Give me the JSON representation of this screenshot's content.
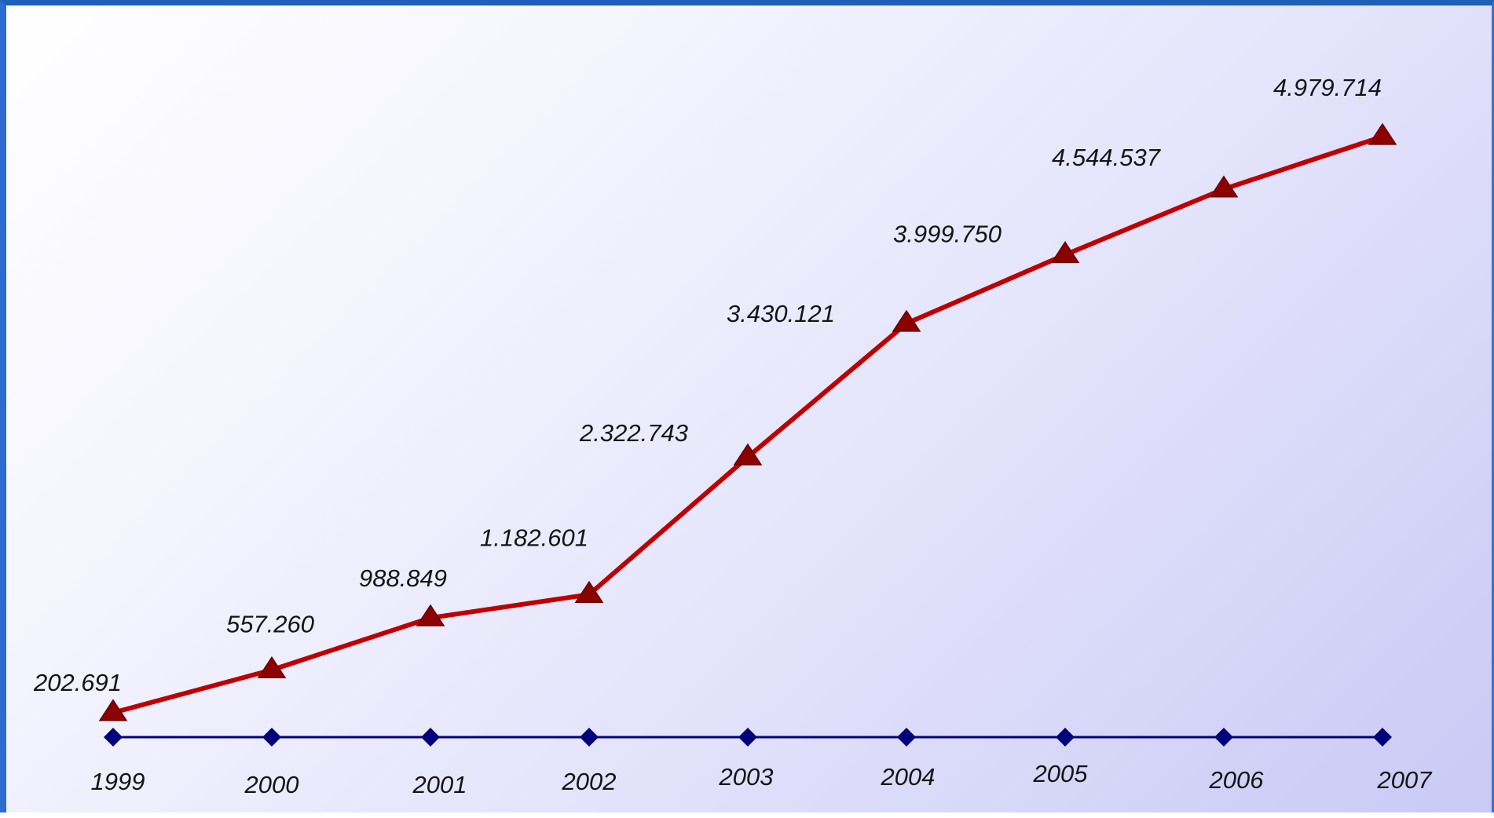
{
  "chart_data": {
    "type": "line",
    "categories": [
      "1999",
      "2000",
      "2001",
      "2002",
      "2003",
      "2004",
      "2005",
      "2006",
      "2007"
    ],
    "series": [
      {
        "name": "",
        "values": [
          202691,
          557260,
          988849,
          1182601,
          2322743,
          3430121,
          3999750,
          4544537,
          4979714
        ],
        "value_labels": [
          "202.691",
          "557.260",
          "988.849",
          "1.182.601",
          "2.322.743",
          "3.430.121",
          "3.999.750",
          "4.544.537",
          "4.979.714"
        ],
        "color": "#c00000",
        "marker": "triangle",
        "marker_color": "#8b0000"
      },
      {
        "name": "",
        "values": [
          0,
          0,
          0,
          0,
          0,
          0,
          0,
          0,
          0
        ],
        "color": "#00007a",
        "marker": "diamond"
      }
    ],
    "title": "",
    "xlabel": "",
    "ylabel": "",
    "ylim": [
      0,
      5200000
    ],
    "grid": false,
    "legend": "none"
  }
}
